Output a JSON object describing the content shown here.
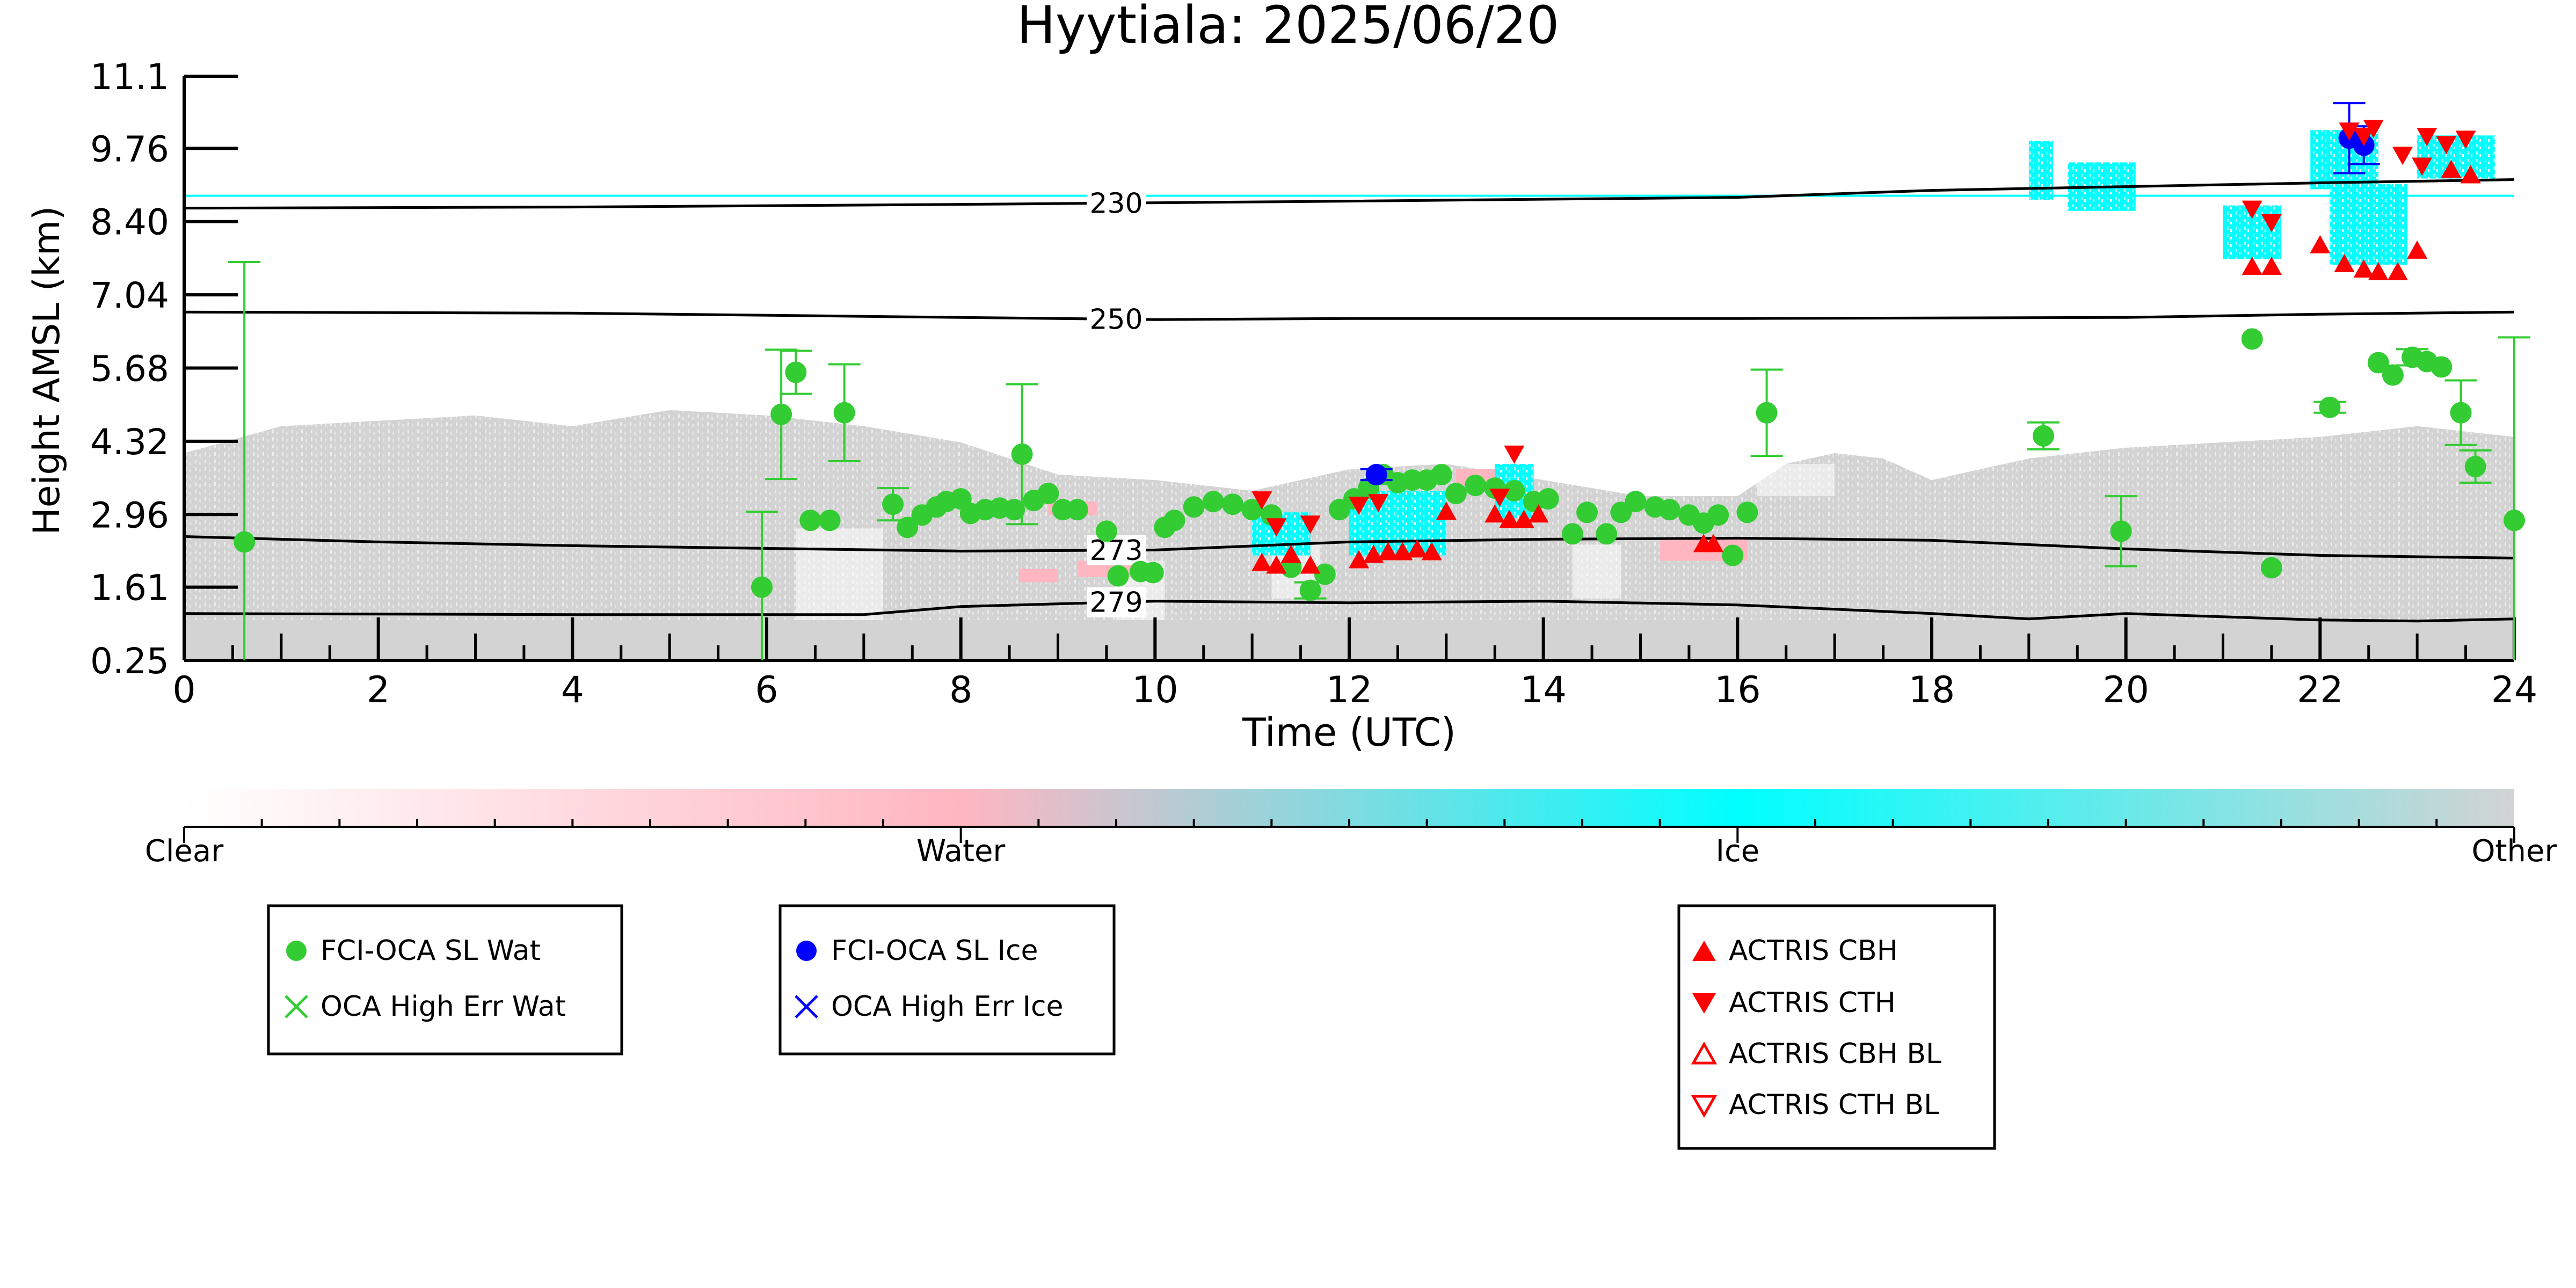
{
  "chart_data": {
    "type": "scatter",
    "title": "Hyytiala: 2025/06/20",
    "xlabel": "Time (UTC)",
    "ylabel": "Height AMSL (km)",
    "xlim": [
      0,
      24
    ],
    "ylim": [
      0.25,
      11.1
    ],
    "x_ticks": [
      "0",
      "2",
      "4",
      "6",
      "8",
      "10",
      "12",
      "14",
      "16",
      "18",
      "20",
      "22",
      "24"
    ],
    "y_ticks": [
      "11.1",
      "9.76",
      "8.40",
      "7.04",
      "5.68",
      "4.32",
      "2.96",
      "1.61",
      "0.25"
    ],
    "y_tick_values": [
      11.1,
      9.76,
      8.4,
      7.04,
      5.68,
      4.32,
      2.96,
      1.61,
      0.25
    ],
    "colorbar": {
      "labels": [
        "Clear",
        "Water",
        "Ice",
        "Other"
      ],
      "colors": [
        "#ffffff",
        "#ffb6c1",
        "#00ffff",
        "#d3d3d3"
      ]
    },
    "colors": {
      "water": "#33cc33",
      "ice": "#0000ff",
      "actris": "#ff0000",
      "background_cloud": "#d3d3d3",
      "ice_cloud": "#00ffff",
      "water_cloud": "#ffb6c1"
    },
    "isotherms": [
      {
        "label": "230",
        "x": [
          0,
          4,
          8,
          12,
          16,
          18,
          20,
          22,
          24
        ],
        "y": [
          8.65,
          8.67,
          8.72,
          8.78,
          8.85,
          8.98,
          9.05,
          9.12,
          9.18
        ]
      },
      {
        "label": "250",
        "x": [
          0,
          4,
          8,
          10,
          12,
          16,
          20,
          22,
          24
        ],
        "y": [
          6.72,
          6.7,
          6.62,
          6.58,
          6.6,
          6.6,
          6.62,
          6.68,
          6.72
        ]
      },
      {
        "label": "273",
        "x": [
          0,
          2,
          4,
          8,
          10,
          12,
          14,
          16,
          18,
          20,
          22,
          24
        ],
        "y": [
          2.55,
          2.45,
          2.38,
          2.28,
          2.3,
          2.45,
          2.5,
          2.52,
          2.48,
          2.32,
          2.2,
          2.15
        ]
      },
      {
        "label": "279",
        "x": [
          0,
          4,
          7,
          8,
          10,
          12,
          14,
          16,
          18,
          19,
          19.3,
          20,
          22,
          23,
          24
        ],
        "y": [
          1.12,
          1.1,
          1.1,
          1.25,
          1.35,
          1.32,
          1.35,
          1.28,
          1.12,
          1.02,
          1.05,
          1.12,
          1.0,
          0.98,
          1.02
        ]
      }
    ],
    "series": [
      {
        "name": "FCI-OCA SL Wat",
        "marker": "circle",
        "x": [
          0.62,
          5.95,
          6.15,
          6.3,
          6.45,
          6.65,
          6.8,
          7.3,
          7.45,
          7.6,
          7.75,
          7.85,
          8.0,
          8.1,
          8.25,
          8.4,
          8.55,
          8.63,
          8.75,
          8.9,
          9.05,
          9.2,
          9.5,
          9.62,
          9.85,
          9.98,
          10.1,
          10.2,
          10.4,
          10.6,
          10.8,
          11.0,
          11.2,
          11.4,
          11.6,
          11.75,
          11.9,
          12.05,
          12.2,
          12.35,
          12.5,
          12.65,
          12.8,
          12.95,
          13.1,
          13.3,
          13.5,
          13.7,
          13.9,
          14.05,
          14.3,
          14.45,
          14.65,
          14.8,
          14.95,
          15.15,
          15.3,
          15.5,
          15.65,
          15.8,
          15.95,
          16.1,
          16.3,
          19.15,
          19.95,
          21.3,
          21.5,
          22.1,
          22.6,
          22.75,
          22.95,
          23.1,
          23.25,
          23.45,
          23.6,
          24.0
        ],
        "y": [
          2.45,
          1.61,
          4.82,
          5.6,
          2.85,
          2.85,
          4.85,
          3.15,
          2.72,
          2.95,
          3.1,
          3.2,
          3.25,
          2.98,
          3.05,
          3.08,
          3.05,
          4.08,
          3.22,
          3.35,
          3.05,
          3.05,
          2.65,
          1.82,
          1.9,
          1.88,
          2.72,
          2.85,
          3.1,
          3.2,
          3.15,
          3.05,
          2.95,
          1.98,
          1.55,
          1.85,
          3.05,
          3.25,
          3.45,
          3.7,
          3.55,
          3.6,
          3.6,
          3.7,
          3.35,
          3.5,
          3.45,
          3.4,
          3.2,
          3.25,
          2.6,
          3.0,
          2.6,
          3.0,
          3.2,
          3.1,
          3.05,
          2.95,
          2.8,
          2.95,
          2.2,
          3.0,
          4.85,
          4.42,
          2.65,
          6.22,
          1.97,
          4.95,
          5.78,
          5.55,
          5.88,
          5.8,
          5.7,
          4.85,
          3.85,
          2.85
        ],
        "error": [
          5.2,
          1.4,
          1.2,
          0.4,
          0,
          0,
          0.9,
          0.3,
          0,
          0,
          0,
          0,
          0,
          0,
          0,
          0,
          0,
          1.3,
          0,
          0,
          0,
          0,
          0,
          0,
          0,
          0,
          0,
          0,
          0,
          0,
          0,
          0,
          0,
          0,
          0.15,
          0,
          0,
          0,
          0,
          0,
          0,
          0,
          0,
          0,
          0,
          0,
          0,
          0,
          0,
          0,
          0,
          0,
          0,
          0,
          0,
          0,
          0,
          0,
          0,
          0,
          0,
          0,
          0.8,
          0.25,
          0.65,
          0,
          0,
          0.1,
          0,
          0,
          0.15,
          0,
          0,
          0.6,
          0.3,
          3.4
        ]
      },
      {
        "name": "OCA High Err Wat",
        "marker": "x",
        "x": [],
        "y": []
      },
      {
        "name": "FCI-OCA SL Ice",
        "marker": "circle",
        "x": [
          12.28,
          22.3,
          22.45
        ],
        "y": [
          3.7,
          9.95,
          9.82
        ],
        "error": [
          0.1,
          0.65,
          0.35
        ]
      },
      {
        "name": "OCA High Err Ice",
        "marker": "x",
        "x": [],
        "y": []
      },
      {
        "name": "ACTRIS CBH",
        "marker": "triangle-up",
        "x": [
          11.1,
          11.25,
          11.4,
          11.6,
          12.1,
          12.25,
          12.4,
          12.55,
          12.7,
          12.85,
          13.0,
          13.5,
          13.65,
          13.8,
          13.95,
          15.65,
          15.75,
          21.3,
          21.5,
          22.0,
          22.25,
          22.45,
          22.6,
          22.8,
          23.0,
          23.35,
          23.55
        ],
        "y": [
          2.05,
          2.0,
          2.2,
          2.0,
          2.1,
          2.2,
          2.25,
          2.25,
          2.3,
          2.25,
          3.0,
          2.95,
          2.85,
          2.85,
          2.95,
          2.4,
          2.4,
          7.55,
          7.55,
          7.95,
          7.6,
          7.5,
          7.45,
          7.45,
          7.85,
          9.35,
          9.25
        ],
        "error": []
      },
      {
        "name": "ACTRIS CTH",
        "marker": "triangle-down",
        "x": [
          11.1,
          11.25,
          11.6,
          12.1,
          12.3,
          13.55,
          13.7,
          21.3,
          21.5,
          22.3,
          22.45,
          22.55,
          22.85,
          23.1,
          23.3,
          23.5,
          23.05
        ],
        "y": [
          3.25,
          2.75,
          2.8,
          3.15,
          3.2,
          3.3,
          4.1,
          8.65,
          8.4,
          10.1,
          10.0,
          10.15,
          9.65,
          10.0,
          9.85,
          9.95,
          9.45
        ],
        "error": []
      },
      {
        "name": "ACTRIS CBH BL",
        "marker": "triangle-up-open",
        "x": [],
        "y": []
      },
      {
        "name": "ACTRIS CTH BL",
        "marker": "triangle-down-open",
        "x": [],
        "y": []
      }
    ]
  }
}
